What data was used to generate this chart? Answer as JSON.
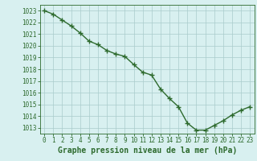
{
  "x": [
    0,
    1,
    2,
    3,
    4,
    5,
    6,
    7,
    8,
    9,
    10,
    11,
    12,
    13,
    14,
    15,
    16,
    17,
    18,
    19,
    20,
    21,
    22,
    23
  ],
  "y": [
    1023.0,
    1022.7,
    1022.2,
    1021.7,
    1021.1,
    1020.4,
    1020.1,
    1019.6,
    1019.3,
    1019.1,
    1018.4,
    1017.75,
    1017.5,
    1016.3,
    1015.5,
    1014.8,
    1013.4,
    1012.8,
    1012.8,
    1013.2,
    1013.6,
    1014.1,
    1014.5,
    1014.8
  ],
  "line_color": "#2d6a2d",
  "marker_color": "#2d6a2d",
  "bg_color": "#d8f0f0",
  "grid_color": "#aacccc",
  "xlabel": "Graphe pression niveau de la mer (hPa)",
  "ylim_min": 1012.5,
  "ylim_max": 1023.5,
  "xtick_labels": [
    "0",
    "1",
    "2",
    "3",
    "4",
    "5",
    "6",
    "7",
    "8",
    "9",
    "10",
    "11",
    "12",
    "13",
    "14",
    "15",
    "16",
    "17",
    "18",
    "19",
    "20",
    "21",
    "22",
    "23"
  ],
  "tick_fontsize": 5.5,
  "xlabel_fontsize": 7,
  "line_width": 1.0,
  "marker_size": 4
}
